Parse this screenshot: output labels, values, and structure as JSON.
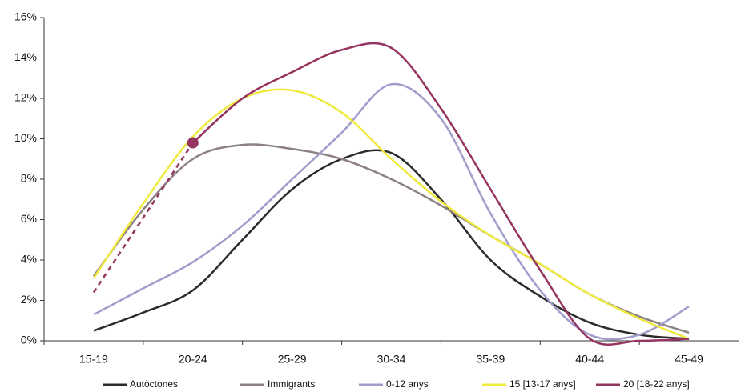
{
  "chart_data": {
    "type": "line",
    "categories": [
      "15-19",
      null,
      "20-24",
      null,
      "25-29",
      null,
      "30-34",
      null,
      "35-39",
      null,
      "40-44",
      null,
      "45-49"
    ],
    "ylim": [
      0,
      16
    ],
    "yticks": [
      {
        "value": 0,
        "label": "0%"
      },
      {
        "value": 2,
        "label": "2%"
      },
      {
        "value": 4,
        "label": "4%"
      },
      {
        "value": 6,
        "label": "6%"
      },
      {
        "value": 8,
        "label": "8%"
      },
      {
        "value": 10,
        "label": "10%"
      },
      {
        "value": 12,
        "label": "12%"
      },
      {
        "value": 14,
        "label": "14%"
      },
      {
        "value": 16,
        "label": "16%"
      }
    ],
    "legend": "bottom",
    "series": [
      {
        "name": "Autòctones",
        "color": "#2b2b2b",
        "values": [
          0.5,
          1.4,
          2.5,
          5.0,
          7.5,
          9.0,
          9.3,
          7.0,
          4.0,
          2.2,
          0.9,
          0.3,
          0.1
        ]
      },
      {
        "name": "Immigrants",
        "color": "#8b8082",
        "values": [
          3.2,
          6.5,
          9.0,
          9.7,
          9.5,
          9.0,
          8.0,
          6.7,
          5.2,
          3.8,
          2.3,
          1.2,
          0.4
        ]
      },
      {
        "name": "0-12 anys",
        "color": "#a09ccc",
        "values": [
          1.3,
          2.6,
          3.9,
          5.7,
          8.0,
          10.3,
          12.7,
          11.0,
          6.3,
          2.5,
          0.3,
          0.3,
          1.7
        ]
      },
      {
        "name": "15 [13-17 anys]",
        "color": "#f0ea3c",
        "values": [
          3.1,
          6.8,
          10.1,
          12.0,
          12.4,
          11.3,
          9.0,
          6.9,
          5.2,
          3.8,
          2.3,
          1.1,
          0.1
        ]
      },
      {
        "name": "20 [18-22 anys]",
        "color": "#963460",
        "values": [
          null,
          null,
          9.8,
          12.0,
          13.3,
          14.4,
          14.5,
          11.5,
          7.5,
          3.5,
          0.1,
          0,
          0.1
        ],
        "dashed_values": [
          2.4,
          6.1,
          9.8,
          null,
          null,
          null,
          null,
          null,
          null,
          null,
          null,
          null,
          null
        ],
        "marker_index": 2
      }
    ]
  }
}
